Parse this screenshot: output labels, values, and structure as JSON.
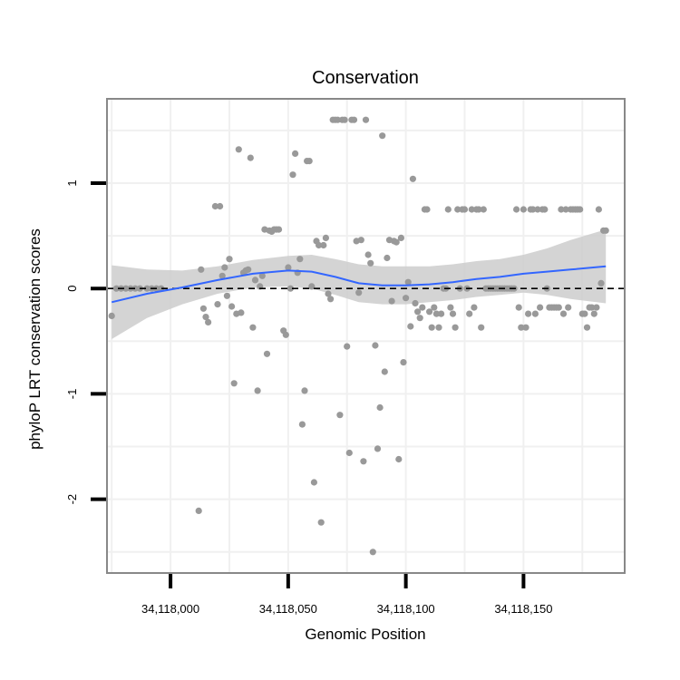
{
  "chart_data": {
    "type": "scatter",
    "title": "Conservation",
    "xlabel": "Genomic Position",
    "ylabel": "phyloP LRT conservation scores",
    "xlim": [
      34117973,
      34118193
    ],
    "ylim": [
      -2.7,
      1.8
    ],
    "x_ticks": [
      34118000,
      34118050,
      34118100,
      34118150
    ],
    "x_tick_labels": [
      "34,118,000",
      "34,118,050",
      "34,118,100",
      "34,118,150"
    ],
    "y_ticks": [
      -2,
      -1,
      0,
      1
    ],
    "y_tick_labels": [
      "-2",
      "-1",
      "0",
      "1"
    ],
    "reference_line": {
      "y": 0,
      "style": "dashed",
      "color": "#000000"
    },
    "grid": true,
    "colors": {
      "points": "#999999",
      "smooth": "#3366FF",
      "band": "#cccccc",
      "panel_border": "#888888",
      "grid": "#f0f0f0"
    },
    "points": [
      [
        34117975,
        -0.26
      ],
      [
        34117977,
        0
      ],
      [
        34117979,
        0
      ],
      [
        34117981,
        0
      ],
      [
        34117983,
        0
      ],
      [
        34117985,
        0
      ],
      [
        34117987,
        0
      ],
      [
        34117990,
        0
      ],
      [
        34117992,
        0
      ],
      [
        34117994,
        0
      ],
      [
        34117996,
        0
      ],
      [
        34118012,
        -2.11
      ],
      [
        34118013,
        0.18
      ],
      [
        34118014,
        -0.19
      ],
      [
        34118015,
        -0.27
      ],
      [
        34118016,
        -0.32
      ],
      [
        34118019,
        0.78
      ],
      [
        34118020,
        -0.15
      ],
      [
        34118021,
        0.78
      ],
      [
        34118022,
        0.12
      ],
      [
        34118023,
        0.2
      ],
      [
        34118024,
        -0.07
      ],
      [
        34118025,
        0.28
      ],
      [
        34118026,
        -0.17
      ],
      [
        34118027,
        -0.9
      ],
      [
        34118028,
        -0.24
      ],
      [
        34118029,
        1.32
      ],
      [
        34118030,
        -0.23
      ],
      [
        34118031,
        0.15
      ],
      [
        34118032,
        0.17
      ],
      [
        34118033,
        0.18
      ],
      [
        34118034,
        1.24
      ],
      [
        34118035,
        -0.37
      ],
      [
        34118036,
        0.08
      ],
      [
        34118037,
        -0.97
      ],
      [
        34118038,
        0.02
      ],
      [
        34118039,
        0.12
      ],
      [
        34118040,
        0.56
      ],
      [
        34118041,
        -0.62
      ],
      [
        34118042,
        0.55
      ],
      [
        34118043,
        0.54
      ],
      [
        34118044,
        0.56
      ],
      [
        34118045,
        0.56
      ],
      [
        34118046,
        0.56
      ],
      [
        34118048,
        -0.4
      ],
      [
        34118049,
        -0.44
      ],
      [
        34118050,
        0.2
      ],
      [
        34118051,
        0
      ],
      [
        34118052,
        1.08
      ],
      [
        34118053,
        1.28
      ],
      [
        34118054,
        0.15
      ],
      [
        34118055,
        0.28
      ],
      [
        34118056,
        -1.29
      ],
      [
        34118057,
        -0.97
      ],
      [
        34118058,
        1.21
      ],
      [
        34118059,
        1.21
      ],
      [
        34118060,
        0.02
      ],
      [
        34118061,
        -1.84
      ],
      [
        34118062,
        0.45
      ],
      [
        34118063,
        0.41
      ],
      [
        34118064,
        -2.22
      ],
      [
        34118065,
        0.41
      ],
      [
        34118066,
        0.48
      ],
      [
        34118067,
        -0.05
      ],
      [
        34118068,
        -0.1
      ],
      [
        34118069,
        1.6
      ],
      [
        34118070,
        1.6
      ],
      [
        34118071,
        1.6
      ],
      [
        34118072,
        -1.2
      ],
      [
        34118073,
        1.6
      ],
      [
        34118074,
        1.6
      ],
      [
        34118075,
        -0.55
      ],
      [
        34118076,
        -1.56
      ],
      [
        34118077,
        1.6
      ],
      [
        34118078,
        1.6
      ],
      [
        34118079,
        0.45
      ],
      [
        34118080,
        -0.04
      ],
      [
        34118081,
        0.46
      ],
      [
        34118082,
        -1.64
      ],
      [
        34118083,
        1.6
      ],
      [
        34118084,
        0.32
      ],
      [
        34118085,
        0.24
      ],
      [
        34118086,
        -2.5
      ],
      [
        34118087,
        -0.54
      ],
      [
        34118088,
        -1.52
      ],
      [
        34118089,
        -1.13
      ],
      [
        34118090,
        1.45
      ],
      [
        34118091,
        -0.79
      ],
      [
        34118092,
        0.29
      ],
      [
        34118093,
        0.46
      ],
      [
        34118094,
        -0.12
      ],
      [
        34118095,
        0.45
      ],
      [
        34118096,
        0.44
      ],
      [
        34118097,
        -1.62
      ],
      [
        34118098,
        0.48
      ],
      [
        34118099,
        -0.7
      ],
      [
        34118100,
        -0.09
      ],
      [
        34118101,
        0.06
      ],
      [
        34118102,
        -0.36
      ],
      [
        34118103,
        1.04
      ],
      [
        34118104,
        -0.14
      ],
      [
        34118105,
        -0.22
      ],
      [
        34118106,
        -0.28
      ],
      [
        34118107,
        -0.18
      ],
      [
        34118108,
        0.75
      ],
      [
        34118109,
        0.75
      ],
      [
        34118110,
        -0.22
      ],
      [
        34118111,
        -0.37
      ],
      [
        34118112,
        -0.18
      ],
      [
        34118113,
        -0.24
      ],
      [
        34118114,
        -0.37
      ],
      [
        34118115,
        -0.24
      ],
      [
        34118116,
        0
      ],
      [
        34118117,
        0
      ],
      [
        34118118,
        0.75
      ],
      [
        34118119,
        -0.18
      ],
      [
        34118120,
        -0.24
      ],
      [
        34118121,
        -0.37
      ],
      [
        34118122,
        0.75
      ],
      [
        34118123,
        0
      ],
      [
        34118124,
        0.75
      ],
      [
        34118125,
        0.75
      ],
      [
        34118126,
        0
      ],
      [
        34118127,
        -0.24
      ],
      [
        34118128,
        0.75
      ],
      [
        34118129,
        -0.18
      ],
      [
        34118130,
        0.75
      ],
      [
        34118131,
        0.75
      ],
      [
        34118132,
        -0.37
      ],
      [
        34118133,
        0.75
      ],
      [
        34118134,
        0
      ],
      [
        34118135,
        0
      ],
      [
        34118136,
        0
      ],
      [
        34118137,
        0
      ],
      [
        34118138,
        0
      ],
      [
        34118139,
        0
      ],
      [
        34118140,
        0
      ],
      [
        34118141,
        0
      ],
      [
        34118142,
        0
      ],
      [
        34118143,
        0
      ],
      [
        34118144,
        0
      ],
      [
        34118145,
        0
      ],
      [
        34118146,
        0
      ],
      [
        34118147,
        0.75
      ],
      [
        34118148,
        -0.18
      ],
      [
        34118149,
        -0.37
      ],
      [
        34118150,
        0.75
      ],
      [
        34118151,
        -0.37
      ],
      [
        34118152,
        -0.24
      ],
      [
        34118153,
        0.75
      ],
      [
        34118154,
        0.75
      ],
      [
        34118155,
        -0.24
      ],
      [
        34118156,
        0.75
      ],
      [
        34118157,
        -0.18
      ],
      [
        34118158,
        0.75
      ],
      [
        34118159,
        0.75
      ],
      [
        34118160,
        0
      ],
      [
        34118161,
        -0.18
      ],
      [
        34118162,
        -0.18
      ],
      [
        34118163,
        -0.18
      ],
      [
        34118164,
        -0.18
      ],
      [
        34118165,
        -0.18
      ],
      [
        34118166,
        0.75
      ],
      [
        34118167,
        -0.24
      ],
      [
        34118168,
        0.75
      ],
      [
        34118169,
        -0.18
      ],
      [
        34118170,
        0.75
      ],
      [
        34118171,
        0.75
      ],
      [
        34118172,
        0.75
      ],
      [
        34118173,
        0.75
      ],
      [
        34118174,
        0.75
      ],
      [
        34118175,
        -0.24
      ],
      [
        34118176,
        -0.24
      ],
      [
        34118177,
        -0.37
      ],
      [
        34118178,
        -0.18
      ],
      [
        34118179,
        -0.18
      ],
      [
        34118180,
        -0.24
      ],
      [
        34118181,
        -0.18
      ],
      [
        34118182,
        0.75
      ],
      [
        34118183,
        0.05
      ],
      [
        34118184,
        0.55
      ],
      [
        34118185,
        0.55
      ]
    ],
    "smooth": {
      "x": [
        34117975,
        34117990,
        34118005,
        34118020,
        34118035,
        34118050,
        34118060,
        34118070,
        34118080,
        34118090,
        34118100,
        34118110,
        34118120,
        34118130,
        34118140,
        34118150,
        34118160,
        34118170,
        34118185
      ],
      "y": [
        -0.13,
        -0.05,
        0.01,
        0.08,
        0.14,
        0.17,
        0.16,
        0.11,
        0.05,
        0.03,
        0.03,
        0.04,
        0.06,
        0.09,
        0.11,
        0.14,
        0.16,
        0.18,
        0.21
      ],
      "lower": [
        -0.48,
        -0.28,
        -0.15,
        -0.05,
        0.01,
        0.02,
        0.0,
        -0.06,
        -0.13,
        -0.15,
        -0.15,
        -0.13,
        -0.11,
        -0.08,
        -0.06,
        -0.04,
        -0.06,
        -0.1,
        -0.14
      ],
      "upper": [
        0.22,
        0.18,
        0.17,
        0.21,
        0.27,
        0.31,
        0.32,
        0.28,
        0.23,
        0.21,
        0.21,
        0.21,
        0.23,
        0.26,
        0.28,
        0.32,
        0.38,
        0.46,
        0.56
      ]
    }
  }
}
